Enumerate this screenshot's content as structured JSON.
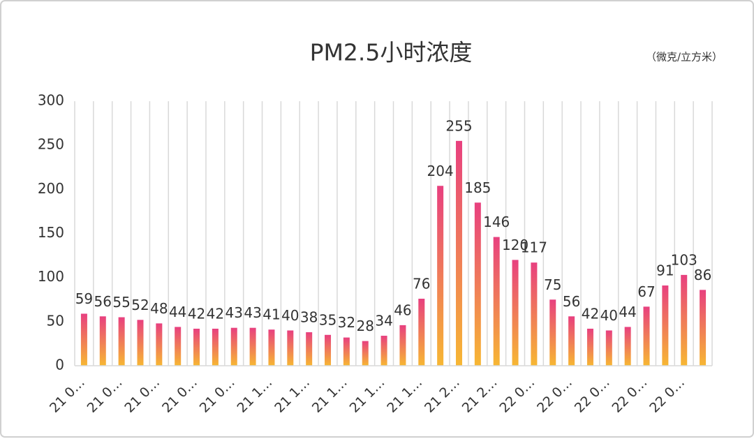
{
  "chart_data": {
    "type": "bar",
    "title": "PM2.5小时浓度",
    "unit_label": "（微克/立方米）",
    "categories": [
      "21 0…",
      null,
      "21 0…",
      null,
      "21 0…",
      null,
      "21 0…",
      null,
      "21 0…",
      null,
      "21 1…",
      null,
      "21 1…",
      null,
      "21 1…",
      null,
      "21 1…",
      null,
      "21 1…",
      null,
      "21 2…",
      null,
      "21 2…",
      null,
      "22 0…",
      null,
      "22 0…",
      null,
      "22 0…",
      null,
      "22 0…",
      null,
      "22 0…",
      null
    ],
    "values": [
      59,
      56,
      55,
      52,
      48,
      44,
      42,
      42,
      43,
      43,
      41,
      40,
      38,
      35,
      32,
      28,
      34,
      46,
      76,
      204,
      255,
      185,
      146,
      120,
      117,
      75,
      56,
      42,
      40,
      44,
      67,
      91,
      103,
      86
    ],
    "gradient": [
      "#e8407f",
      "#f7b733"
    ],
    "ylim": [
      0,
      300
    ],
    "yticks": [
      0,
      50,
      100,
      150,
      200,
      250,
      300
    ],
    "grid": true
  }
}
